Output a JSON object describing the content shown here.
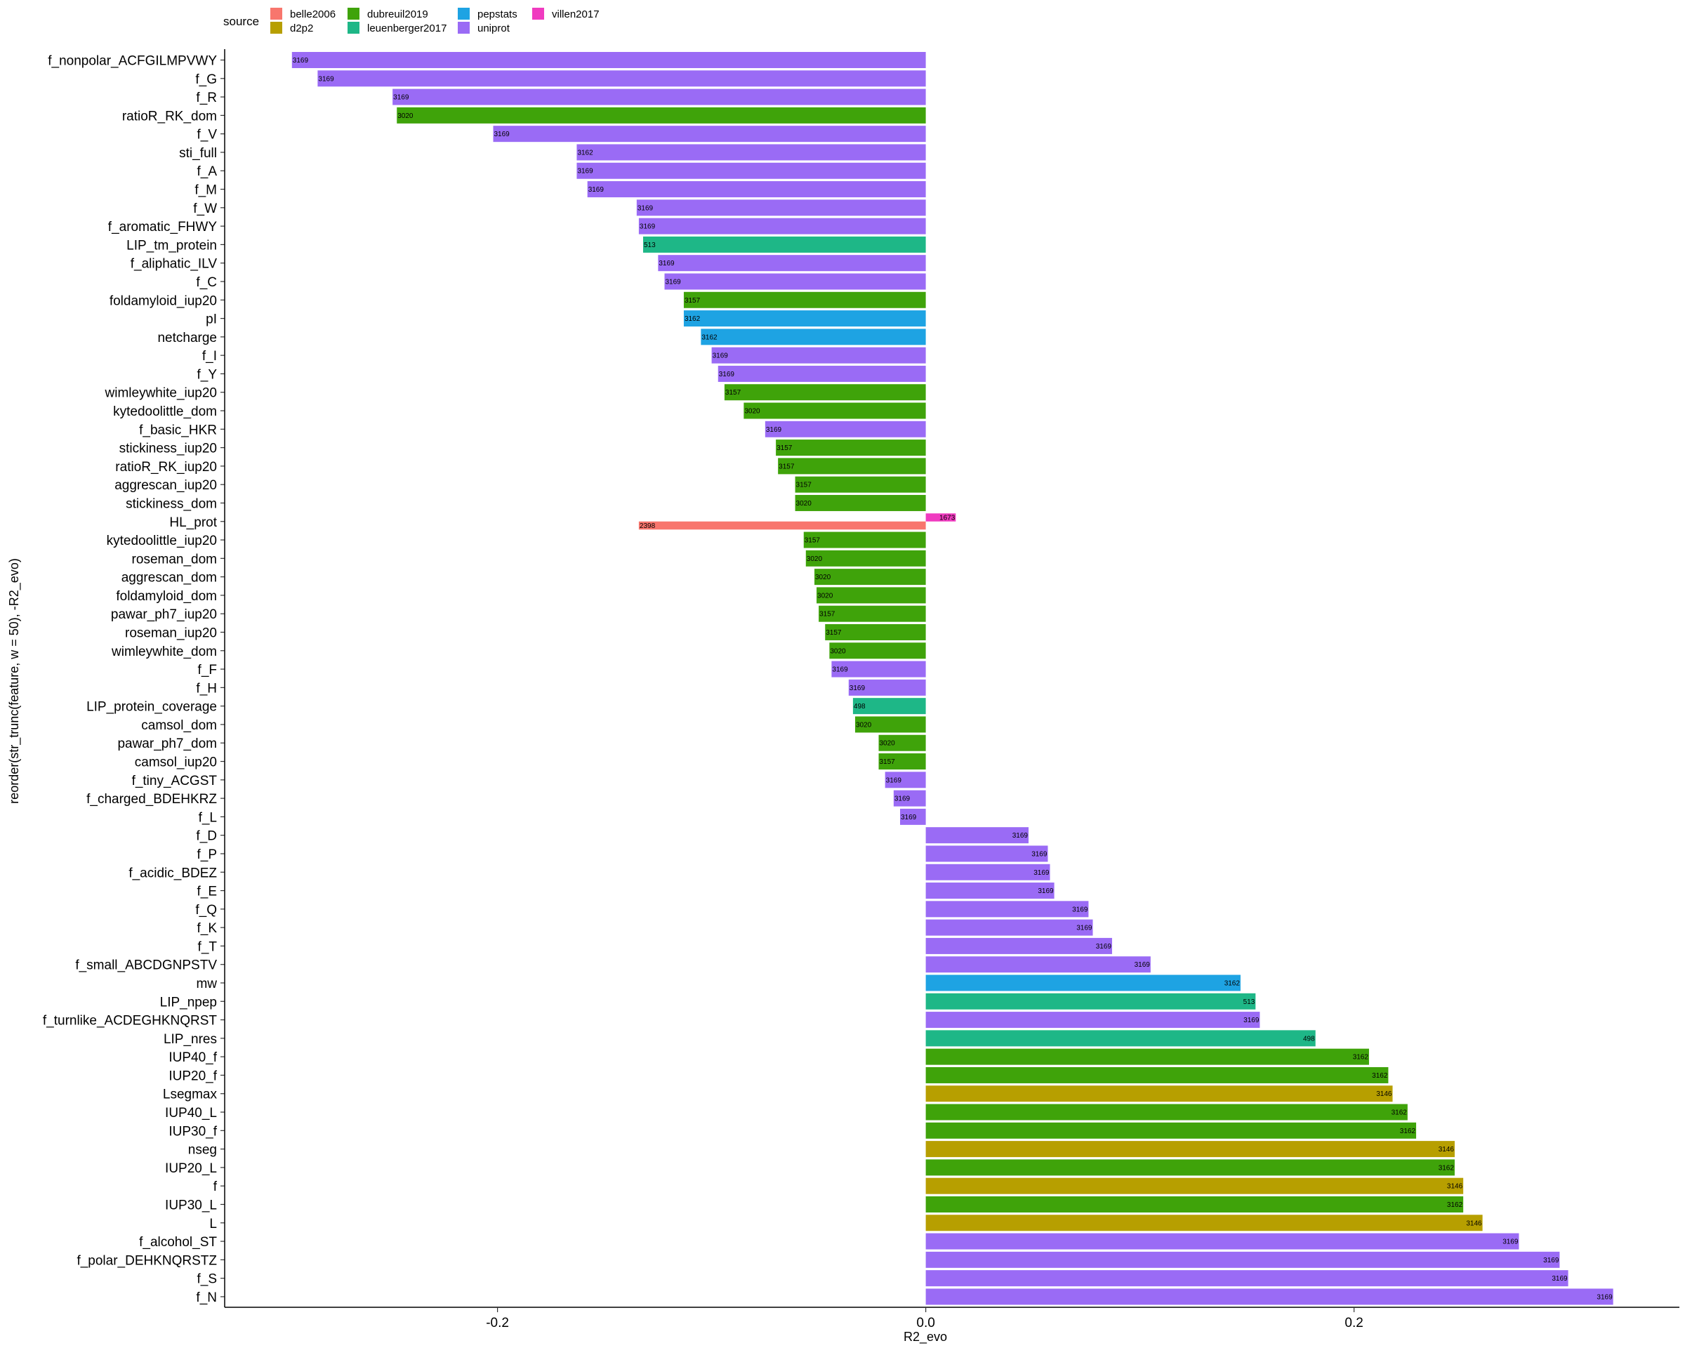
{
  "chart_data": {
    "type": "bar",
    "orientation": "horizontal",
    "xlabel": "R2_evo",
    "ylabel": "reorder(str_trunc(feature, w = 50), -R2_evo)",
    "xlim": [
      -0.325,
      0.35
    ],
    "x_ticks": [
      -0.2,
      0.0,
      0.2
    ],
    "x_tick_labels": [
      "-0.2",
      "0.0",
      "0.2"
    ],
    "grid": false,
    "legend": {
      "title": "source",
      "position": "top-left",
      "items": [
        {
          "name": "belle2006",
          "color": "#F8766D"
        },
        {
          "name": "d2p2",
          "color": "#B79F00"
        },
        {
          "name": "dubreuil2019",
          "color": "#3FA30A"
        },
        {
          "name": "leuenberger2017",
          "color": "#1EB787"
        },
        {
          "name": "pepstats",
          "color": "#1EA3E3"
        },
        {
          "name": "uniprot",
          "color": "#9A6BF5"
        },
        {
          "name": "villen2017",
          "color": "#F03BC0"
        }
      ]
    },
    "categories": [
      "f_nonpolar_ACFGILMPVWY",
      "f_G",
      "f_R",
      "ratioR_RK_dom",
      "f_V",
      "sti_full",
      "f_A",
      "f_M",
      "f_W",
      "f_aromatic_FHWY",
      "LIP_tm_protein",
      "f_aliphatic_ILV",
      "f_C",
      "foldamyloid_iup20",
      "pI",
      "netcharge",
      "f_I",
      "f_Y",
      "wimleywhite_iup20",
      "kytedoolittle_dom",
      "f_basic_HKR",
      "stickiness_iup20",
      "ratioR_RK_iup20",
      "aggrescan_iup20",
      "stickiness_dom",
      "HL_prot",
      "kytedoolittle_iup20",
      "roseman_dom",
      "aggrescan_dom",
      "foldamyloid_dom",
      "pawar_ph7_iup20",
      "roseman_iup20",
      "wimleywhite_dom",
      "f_F",
      "f_H",
      "LIP_protein_coverage",
      "camsol_dom",
      "pawar_ph7_dom",
      "camsol_iup20",
      "f_tiny_ACGST",
      "f_charged_BDEHKRZ",
      "f_L",
      "f_D",
      "f_P",
      "f_acidic_BDEZ",
      "f_E",
      "f_Q",
      "f_K",
      "f_T",
      "f_small_ABCDGNPSTV",
      "mw",
      "LIP_npep",
      "f_turnlike_ACDEGHKNQRST",
      "LIP_nres",
      "IUP40_f",
      "IUP20_f",
      "Lsegmax",
      "IUP40_L",
      "IUP30_f",
      "nseg",
      "IUP20_L",
      "f",
      "IUP30_L",
      "L",
      "f_alcohol_ST",
      "f_polar_DEHKNQRSTZ",
      "f_S",
      "f_N"
    ],
    "bars": [
      {
        "feature": "f_nonpolar_ACFGILMPVWY",
        "source": "uniprot",
        "value": -0.296,
        "n": "3169"
      },
      {
        "feature": "f_G",
        "source": "uniprot",
        "value": -0.284,
        "n": "3169"
      },
      {
        "feature": "f_R",
        "source": "uniprot",
        "value": -0.249,
        "n": "3169"
      },
      {
        "feature": "ratioR_RK_dom",
        "source": "dubreuil2019",
        "value": -0.247,
        "n": "3020"
      },
      {
        "feature": "f_V",
        "source": "uniprot",
        "value": -0.202,
        "n": "3169"
      },
      {
        "feature": "sti_full",
        "source": "uniprot",
        "value": -0.163,
        "n": "3162"
      },
      {
        "feature": "f_A",
        "source": "uniprot",
        "value": -0.163,
        "n": "3169"
      },
      {
        "feature": "f_M",
        "source": "uniprot",
        "value": -0.158,
        "n": "3169"
      },
      {
        "feature": "f_W",
        "source": "uniprot",
        "value": -0.135,
        "n": "3169"
      },
      {
        "feature": "f_aromatic_FHWY",
        "source": "uniprot",
        "value": -0.134,
        "n": "3169"
      },
      {
        "feature": "LIP_tm_protein",
        "source": "leuenberger2017",
        "value": -0.132,
        "n": "513"
      },
      {
        "feature": "f_aliphatic_ILV",
        "source": "uniprot",
        "value": -0.125,
        "n": "3169"
      },
      {
        "feature": "f_C",
        "source": "uniprot",
        "value": -0.122,
        "n": "3169"
      },
      {
        "feature": "foldamyloid_iup20",
        "source": "dubreuil2019",
        "value": -0.113,
        "n": "3157"
      },
      {
        "feature": "pI",
        "source": "pepstats",
        "value": -0.113,
        "n": "3162"
      },
      {
        "feature": "netcharge",
        "source": "pepstats",
        "value": -0.105,
        "n": "3162"
      },
      {
        "feature": "f_I",
        "source": "uniprot",
        "value": -0.1,
        "n": "3169"
      },
      {
        "feature": "f_Y",
        "source": "uniprot",
        "value": -0.097,
        "n": "3169"
      },
      {
        "feature": "wimleywhite_iup20",
        "source": "dubreuil2019",
        "value": -0.094,
        "n": "3157"
      },
      {
        "feature": "kytedoolittle_dom",
        "source": "dubreuil2019",
        "value": -0.085,
        "n": "3020"
      },
      {
        "feature": "f_basic_HKR",
        "source": "uniprot",
        "value": -0.075,
        "n": "3169"
      },
      {
        "feature": "stickiness_iup20",
        "source": "dubreuil2019",
        "value": -0.07,
        "n": "3157"
      },
      {
        "feature": "ratioR_RK_iup20",
        "source": "dubreuil2019",
        "value": -0.069,
        "n": "3157"
      },
      {
        "feature": "aggrescan_iup20",
        "source": "dubreuil2019",
        "value": -0.061,
        "n": "3157"
      },
      {
        "feature": "stickiness_dom",
        "source": "dubreuil2019",
        "value": -0.061,
        "n": "3020"
      },
      {
        "feature": "HL_prot",
        "source": "belle2006",
        "value": -0.134,
        "n": "2398",
        "half": "lower"
      },
      {
        "feature": "HL_prot",
        "source": "villen2017",
        "value": 0.014,
        "n": "1673",
        "half": "upper"
      },
      {
        "feature": "kytedoolittle_iup20",
        "source": "dubreuil2019",
        "value": -0.057,
        "n": "3157"
      },
      {
        "feature": "roseman_dom",
        "source": "dubreuil2019",
        "value": -0.056,
        "n": "3020"
      },
      {
        "feature": "aggrescan_dom",
        "source": "dubreuil2019",
        "value": -0.052,
        "n": "3020"
      },
      {
        "feature": "foldamyloid_dom",
        "source": "dubreuil2019",
        "value": -0.051,
        "n": "3020"
      },
      {
        "feature": "pawar_ph7_iup20",
        "source": "dubreuil2019",
        "value": -0.05,
        "n": "3157"
      },
      {
        "feature": "roseman_iup20",
        "source": "dubreuil2019",
        "value": -0.047,
        "n": "3157"
      },
      {
        "feature": "wimleywhite_dom",
        "source": "dubreuil2019",
        "value": -0.045,
        "n": "3020"
      },
      {
        "feature": "f_F",
        "source": "uniprot",
        "value": -0.044,
        "n": "3169"
      },
      {
        "feature": "f_H",
        "source": "uniprot",
        "value": -0.036,
        "n": "3169"
      },
      {
        "feature": "LIP_protein_coverage",
        "source": "leuenberger2017",
        "value": -0.034,
        "n": "498"
      },
      {
        "feature": "camsol_dom",
        "source": "dubreuil2019",
        "value": -0.033,
        "n": "3020"
      },
      {
        "feature": "pawar_ph7_dom",
        "source": "dubreuil2019",
        "value": -0.022,
        "n": "3020"
      },
      {
        "feature": "camsol_iup20",
        "source": "dubreuil2019",
        "value": -0.022,
        "n": "3157"
      },
      {
        "feature": "f_tiny_ACGST",
        "source": "uniprot",
        "value": -0.019,
        "n": "3169"
      },
      {
        "feature": "f_charged_BDEHKRZ",
        "source": "uniprot",
        "value": -0.015,
        "n": "3169"
      },
      {
        "feature": "f_L",
        "source": "uniprot",
        "value": -0.012,
        "n": "3169"
      },
      {
        "feature": "f_D",
        "source": "uniprot",
        "value": 0.048,
        "n": "3169"
      },
      {
        "feature": "f_P",
        "source": "uniprot",
        "value": 0.057,
        "n": "3169"
      },
      {
        "feature": "f_acidic_BDEZ",
        "source": "uniprot",
        "value": 0.058,
        "n": "3169"
      },
      {
        "feature": "f_E",
        "source": "uniprot",
        "value": 0.06,
        "n": "3169"
      },
      {
        "feature": "f_Q",
        "source": "uniprot",
        "value": 0.076,
        "n": "3169"
      },
      {
        "feature": "f_K",
        "source": "uniprot",
        "value": 0.078,
        "n": "3169"
      },
      {
        "feature": "f_T",
        "source": "uniprot",
        "value": 0.087,
        "n": "3169"
      },
      {
        "feature": "f_small_ABCDGNPSTV",
        "source": "uniprot",
        "value": 0.105,
        "n": "3169"
      },
      {
        "feature": "mw",
        "source": "pepstats",
        "value": 0.147,
        "n": "3162"
      },
      {
        "feature": "LIP_npep",
        "source": "leuenberger2017",
        "value": 0.154,
        "n": "513"
      },
      {
        "feature": "f_turnlike_ACDEGHKNQRST",
        "source": "uniprot",
        "value": 0.156,
        "n": "3169"
      },
      {
        "feature": "LIP_nres",
        "source": "leuenberger2017",
        "value": 0.182,
        "n": "498"
      },
      {
        "feature": "IUP40_f",
        "source": "dubreuil2019",
        "value": 0.207,
        "n": "3162"
      },
      {
        "feature": "IUP20_f",
        "source": "dubreuil2019",
        "value": 0.216,
        "n": "3162"
      },
      {
        "feature": "Lsegmax",
        "source": "d2p2",
        "value": 0.218,
        "n": "3146"
      },
      {
        "feature": "IUP40_L",
        "source": "dubreuil2019",
        "value": 0.225,
        "n": "3162"
      },
      {
        "feature": "IUP30_f",
        "source": "dubreuil2019",
        "value": 0.229,
        "n": "3162"
      },
      {
        "feature": "nseg",
        "source": "d2p2",
        "value": 0.247,
        "n": "3146"
      },
      {
        "feature": "IUP20_L",
        "source": "dubreuil2019",
        "value": 0.247,
        "n": "3162"
      },
      {
        "feature": "f",
        "source": "d2p2",
        "value": 0.251,
        "n": "3146"
      },
      {
        "feature": "IUP30_L",
        "source": "dubreuil2019",
        "value": 0.251,
        "n": "3162"
      },
      {
        "feature": "L",
        "source": "d2p2",
        "value": 0.26,
        "n": "3146"
      },
      {
        "feature": "f_alcohol_ST",
        "source": "uniprot",
        "value": 0.277,
        "n": "3169"
      },
      {
        "feature": "f_polar_DEHKNQRSTZ",
        "source": "uniprot",
        "value": 0.296,
        "n": "3169"
      },
      {
        "feature": "f_S",
        "source": "uniprot",
        "value": 0.3,
        "n": "3169"
      },
      {
        "feature": "f_N",
        "source": "uniprot",
        "value": 0.321,
        "n": "3169"
      }
    ]
  }
}
